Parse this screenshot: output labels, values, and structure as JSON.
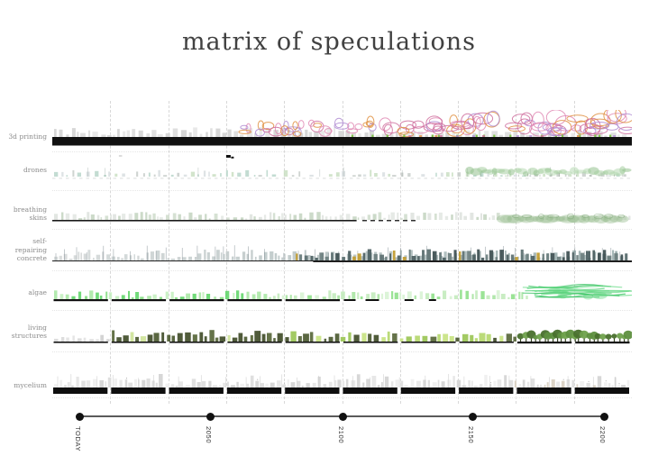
{
  "title": "matrix of speculations",
  "matrix": {
    "rows": [
      {
        "id": "3d-printing",
        "label": "3d printing",
        "style": "printing",
        "palette": [
          "#e08ab4",
          "#df8f3f",
          "#b08cd2",
          "#cf6f9e"
        ],
        "accents": [
          "#79c043"
        ],
        "ground_color": "#111111"
      },
      {
        "id": "drones",
        "label": "drones",
        "style": "drones",
        "palette": [
          "#c7ccc9",
          "#b9d6ca",
          "#cadfc3",
          "#d8dee1"
        ],
        "accents": [
          "#a5cda1",
          "#93c18e",
          "#b7d8b2"
        ],
        "ground_color": "#b9beba"
      },
      {
        "id": "breathing-skins",
        "label": "breathing\nskins",
        "style": "skins",
        "palette": [
          "#dde2dd",
          "#cfdccb",
          "#c3d4c0",
          "#e2e6e2"
        ],
        "accents": [
          "#9cbf93",
          "#7fa678"
        ],
        "ground_color": "#1a1a1a"
      },
      {
        "id": "self-repairing-concrete",
        "label": "self-\nrepairing\nconcrete",
        "style": "concrete",
        "palette": [
          "#d4d8d8",
          "#8ea4a4"
        ],
        "accents": [
          "#5b6f70",
          "#4a5d5f",
          "#6b7e7e",
          "#3f5052",
          "#c09a2c"
        ],
        "ground_color": "#2a2a2a"
      },
      {
        "id": "algae",
        "label": "algae",
        "style": "algae",
        "palette": [
          "#7fdc7c",
          "#59d363",
          "#a5e6a0",
          "#c2eebd"
        ],
        "accents": [
          "#4fcf74",
          "#3fc467",
          "#6fdc8c"
        ],
        "ground_color": "#111111"
      },
      {
        "id": "living-structures",
        "label": "living\nstructures",
        "style": "living",
        "palette": [
          "#4d5b33",
          "#434f2b",
          "#59683b"
        ],
        "accents": [
          "#b6d86f",
          "#c8e383",
          "#9cc657",
          "#5e8f3f",
          "#6fa14c",
          "#49702d"
        ],
        "ground_color": "#141414"
      },
      {
        "id": "mycelium",
        "label": "mycelium",
        "style": "mycelium",
        "palette": [
          "#e6e6e6",
          "#dddddd",
          "#efefef",
          "#d5d5d5"
        ],
        "accents": [
          "#d9d1c3"
        ],
        "ground_color": "#0e0e0e"
      }
    ]
  },
  "timeline": {
    "ticks": [
      "TODAY",
      "2050",
      "2100",
      "2150",
      "2200"
    ]
  },
  "grid": {
    "dash_color": "#d8d8d8",
    "sep_color": "#e6e6e6",
    "axis_color": "#5a5a5a",
    "dot_color": "#111111"
  }
}
